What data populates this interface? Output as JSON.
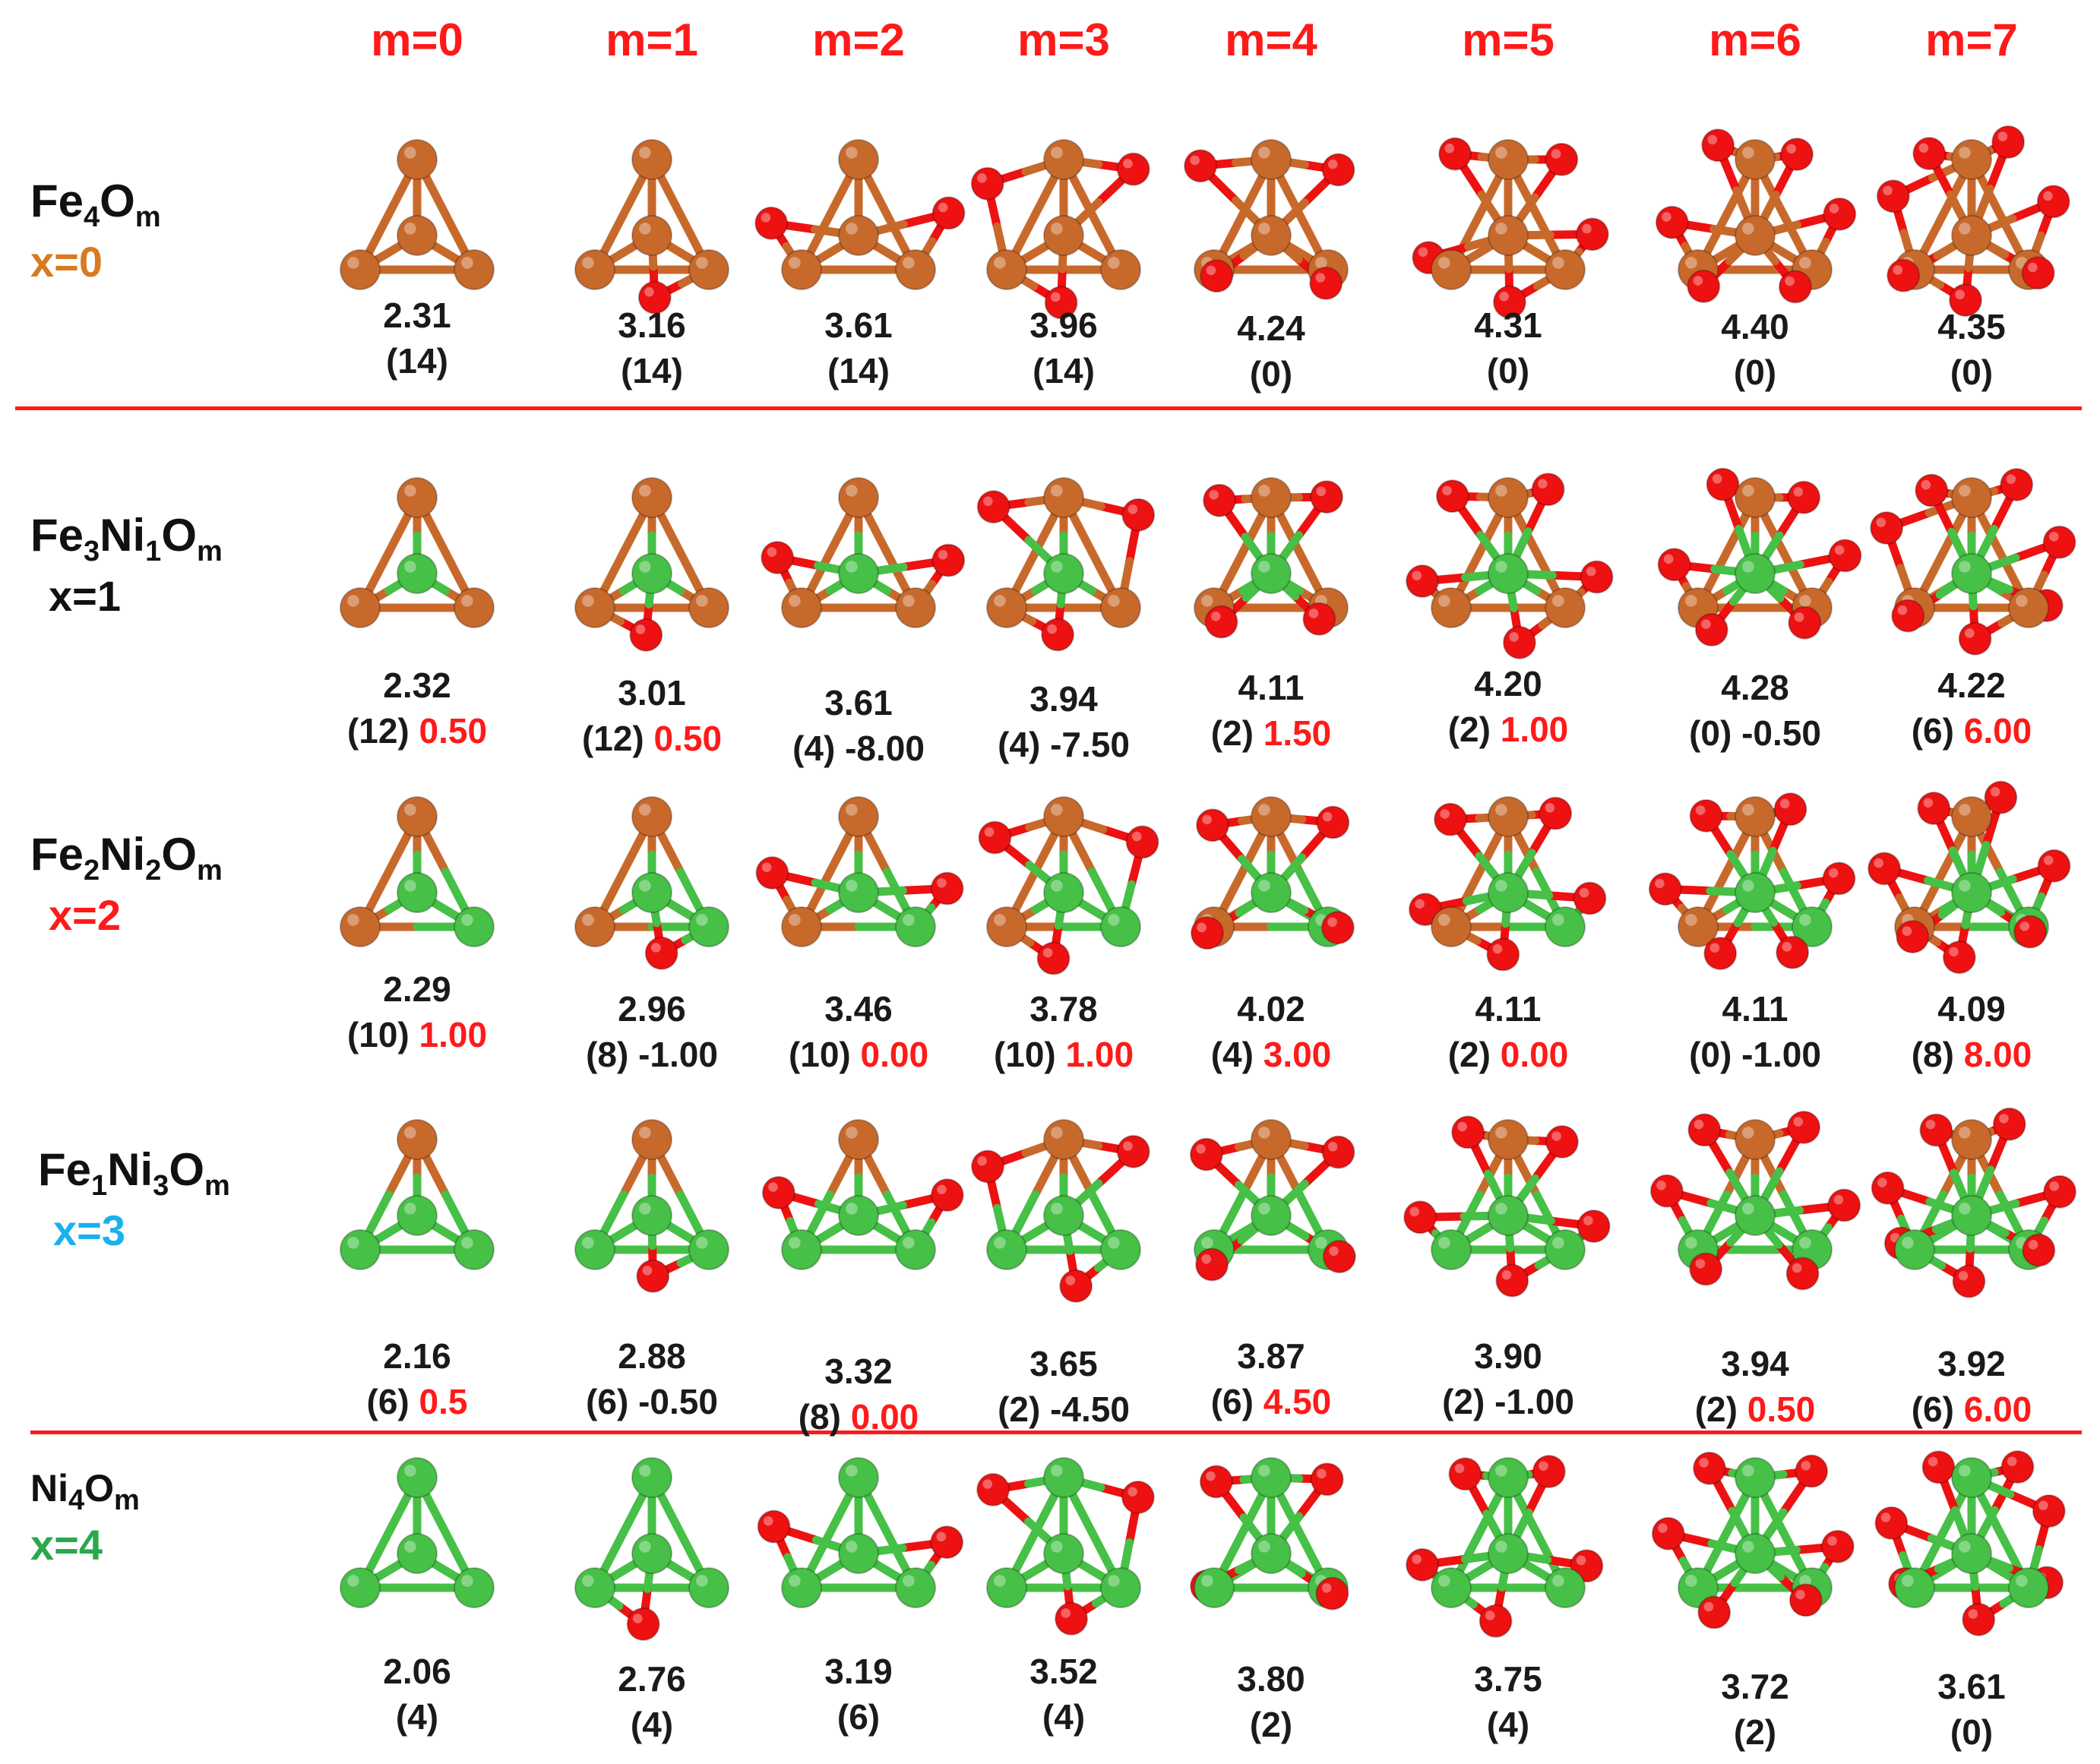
{
  "columns": [
    "m=0",
    "m=1",
    "m=2",
    "m=3",
    "m=4",
    "m=5",
    "m=6",
    "m=7"
  ],
  "colors": {
    "Fe": "#c8692c",
    "Ni": "#46c046",
    "O": "#ee1111",
    "header": "#ff1a1a",
    "x0": "#d87a22",
    "x1": "#111111",
    "x2": "#ff1a1a",
    "x3": "#1ab0ee",
    "x4": "#2aa84a"
  },
  "rows": [
    {
      "formula": {
        "a": "Fe",
        "a_sub": "4",
        "b": "O",
        "b_sub": "m"
      },
      "x": "x=0",
      "cells": [
        {
          "value": "2.31",
          "spin": "(14)",
          "diff": ""
        },
        {
          "value": "3.16",
          "spin": "(14)",
          "diff": ""
        },
        {
          "value": "3.61",
          "spin": "(14)",
          "diff": ""
        },
        {
          "value": "3.96",
          "spin": "(14)",
          "diff": ""
        },
        {
          "value": "4.24",
          "spin": "(0)",
          "diff": ""
        },
        {
          "value": "4.31",
          "spin": "(0)",
          "diff": ""
        },
        {
          "value": "4.40",
          "spin": "(0)",
          "diff": ""
        },
        {
          "value": "4.35",
          "spin": "(0)",
          "diff": ""
        }
      ]
    },
    {
      "formula": {
        "a": "Fe",
        "a_sub": "3",
        "b": "Ni",
        "b_sub": "1",
        "c": "O",
        "c_sub": "m"
      },
      "x": "x=1",
      "cells": [
        {
          "value": "2.32",
          "spin": "(12)",
          "diff": "0.50",
          "diff_pos": true
        },
        {
          "value": "3.01",
          "spin": "(12)",
          "diff": "0.50",
          "diff_pos": true
        },
        {
          "value": "3.61",
          "spin": "(4)",
          "diff": "-8.00",
          "diff_pos": false
        },
        {
          "value": "3.94",
          "spin": "(4)",
          "diff": "-7.50",
          "diff_pos": false
        },
        {
          "value": "4.11",
          "spin": "(2)",
          "diff": "1.50",
          "diff_pos": true
        },
        {
          "value": "4.20",
          "spin": "(2)",
          "diff": "1.00",
          "diff_pos": true
        },
        {
          "value": "4.28",
          "spin": "(0)",
          "diff": "-0.50",
          "diff_pos": false
        },
        {
          "value": "4.22",
          "spin": "(6)",
          "diff": "6.00",
          "diff_pos": true
        }
      ]
    },
    {
      "formula": {
        "a": "Fe",
        "a_sub": "2",
        "b": "Ni",
        "b_sub": "2",
        "c": "O",
        "c_sub": "m"
      },
      "x": "x=2",
      "cells": [
        {
          "value": "2.29",
          "spin": "(10)",
          "diff": "1.00",
          "diff_pos": true
        },
        {
          "value": "2.96",
          "spin": "(8)",
          "diff": "-1.00",
          "diff_pos": false
        },
        {
          "value": "3.46",
          "spin": "(10)",
          "diff": "0.00",
          "diff_pos": true
        },
        {
          "value": "3.78",
          "spin": "(10)",
          "diff": "1.00",
          "diff_pos": true
        },
        {
          "value": "4.02",
          "spin": "(4)",
          "diff": "3.00",
          "diff_pos": true
        },
        {
          "value": "4.11",
          "spin": "(2)",
          "diff": "0.00",
          "diff_pos": true
        },
        {
          "value": "4.11",
          "spin": "(0)",
          "diff": "-1.00",
          "diff_pos": false
        },
        {
          "value": "4.09",
          "spin": "(8)",
          "diff": "8.00",
          "diff_pos": true
        }
      ]
    },
    {
      "formula": {
        "a": "Fe",
        "a_sub": "1",
        "b": "Ni",
        "b_sub": "3",
        "c": "O",
        "c_sub": "m"
      },
      "x": "x=3",
      "cells": [
        {
          "value": "2.16",
          "spin": "(6)",
          "diff": "0.5",
          "diff_pos": true
        },
        {
          "value": "2.88",
          "spin": "(6)",
          "diff": "-0.50",
          "diff_pos": false
        },
        {
          "value": "3.32",
          "spin": "(8)",
          "diff": "0.00",
          "diff_pos": true
        },
        {
          "value": "3.65",
          "spin": "(2)",
          "diff": "-4.50",
          "diff_pos": false
        },
        {
          "value": "3.87",
          "spin": "(6)",
          "diff": "4.50",
          "diff_pos": true
        },
        {
          "value": "3.90",
          "spin": "(2)",
          "diff": "-1.00",
          "diff_pos": false
        },
        {
          "value": "3.94",
          "spin": "(2)",
          "diff": "0.50",
          "diff_pos": true
        },
        {
          "value": "3.92",
          "spin": "(6)",
          "diff": "6.00",
          "diff_pos": true
        }
      ]
    },
    {
      "formula": {
        "a": "Ni",
        "a_sub": "4",
        "b": "O",
        "b_sub": "m"
      },
      "x": "x=4",
      "cells": [
        {
          "value": "2.06",
          "spin": "(4)",
          "diff": ""
        },
        {
          "value": "2.76",
          "spin": "(4)",
          "diff": ""
        },
        {
          "value": "3.19",
          "spin": "(6)",
          "diff": ""
        },
        {
          "value": "3.52",
          "spin": "(4)",
          "diff": ""
        },
        {
          "value": "3.80",
          "spin": "(2)",
          "diff": ""
        },
        {
          "value": "3.75",
          "spin": "(4)",
          "diff": ""
        },
        {
          "value": "3.72",
          "spin": "(2)",
          "diff": ""
        },
        {
          "value": "3.61",
          "spin": "(0)",
          "diff": ""
        }
      ]
    }
  ]
}
